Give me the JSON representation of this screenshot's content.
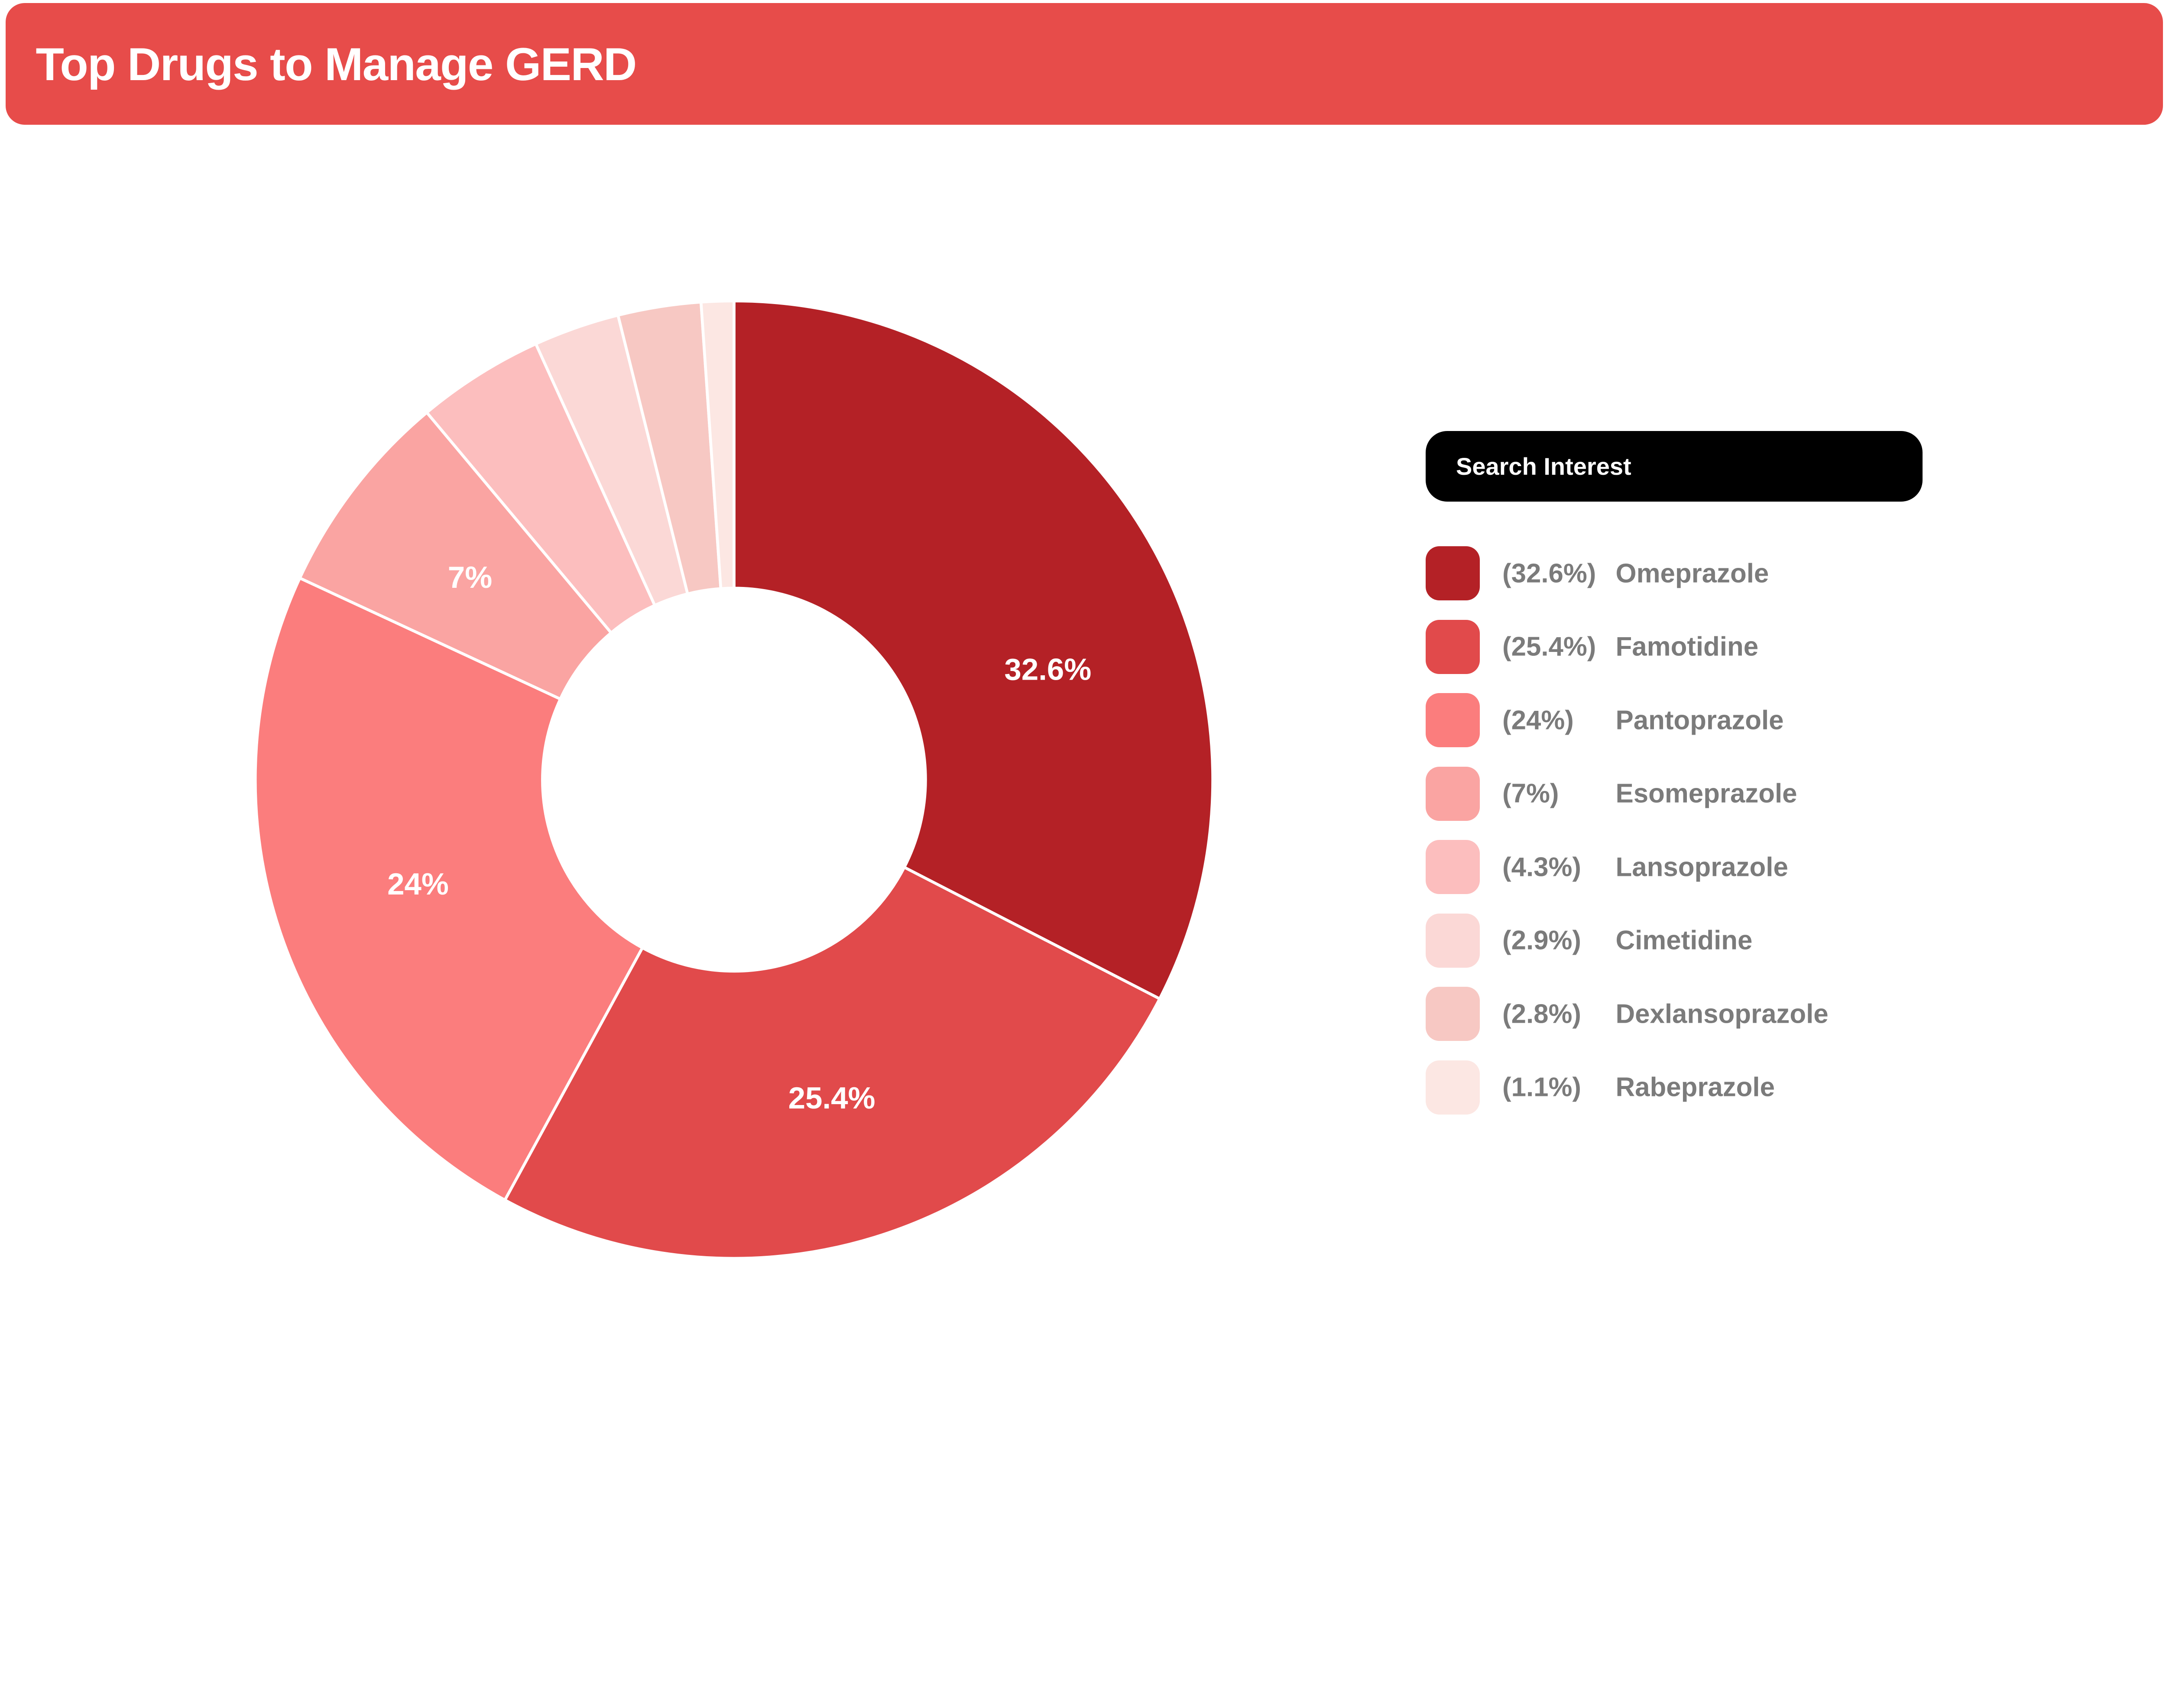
{
  "page": {
    "background": "#FFFFFF"
  },
  "header": {
    "title": "Top Drugs to Manage GERD",
    "background": "#E74C4A",
    "text_color": "#FFFFFF"
  },
  "legend": {
    "title": "Search Interest",
    "title_bg": "#000000",
    "title_color": "#FFFFFF",
    "text_color": "#7B7B7B"
  },
  "chart_data": {
    "type": "pie",
    "subtype": "donut",
    "title": "Top Drugs to Manage GERD",
    "legend_title": "Search Interest",
    "unit": "%",
    "categories": [
      "Omeprazole",
      "Famotidine",
      "Pantoprazole",
      "Esomeprazole",
      "Lansoprazole",
      "Cimetidine",
      "Dexlansoprazole",
      "Rabeprazole"
    ],
    "values": [
      32.6,
      25.4,
      24,
      7,
      4.3,
      2.9,
      2.8,
      1.1
    ],
    "slices": [
      {
        "name": "Omeprazole",
        "value": 32.6,
        "color": "#B42126",
        "slice_label": "32.6%",
        "legend_label": "(32.6%)",
        "label_angle_deg": 70.6
      },
      {
        "name": "Famotidine",
        "value": 25.4,
        "color": "#E14A4B",
        "slice_label": "25.4%",
        "legend_label": "(25.4%)",
        "label_angle_deg": null
      },
      {
        "name": "Pantoprazole",
        "value": 24,
        "color": "#FB7D7D",
        "slice_label": "24%",
        "legend_label": "(24%)",
        "label_angle_deg": null
      },
      {
        "name": "Esomeprazole",
        "value": 7,
        "color": "#FAA4A2",
        "slice_label": "7%",
        "legend_label": "(7%)",
        "label_angle_deg": null
      },
      {
        "name": "Lansoprazole",
        "value": 4.3,
        "color": "#FCBEBE",
        "slice_label": "",
        "legend_label": "(4.3%)",
        "label_angle_deg": null
      },
      {
        "name": "Cimetidine",
        "value": 2.9,
        "color": "#FBD8D6",
        "slice_label": "",
        "legend_label": "(2.9%)",
        "label_angle_deg": null
      },
      {
        "name": "Dexlansoprazole",
        "value": 2.8,
        "color": "#F7C8C3",
        "slice_label": "",
        "legend_label": "(2.8%)",
        "label_angle_deg": null
      },
      {
        "name": "Rabeprazole",
        "value": 1.1,
        "color": "#FCE7E3",
        "slice_label": "",
        "legend_label": "(1.1%)",
        "label_angle_deg": null
      }
    ],
    "layout": {
      "start_angle_deg": 0,
      "direction": "clockwise",
      "inner_radius_frac": 0.4,
      "label_radius_frac": 0.695,
      "stroke_color": "#FFFFFF",
      "stroke_width": 8,
      "legend_position": "right",
      "grid": false
    }
  }
}
